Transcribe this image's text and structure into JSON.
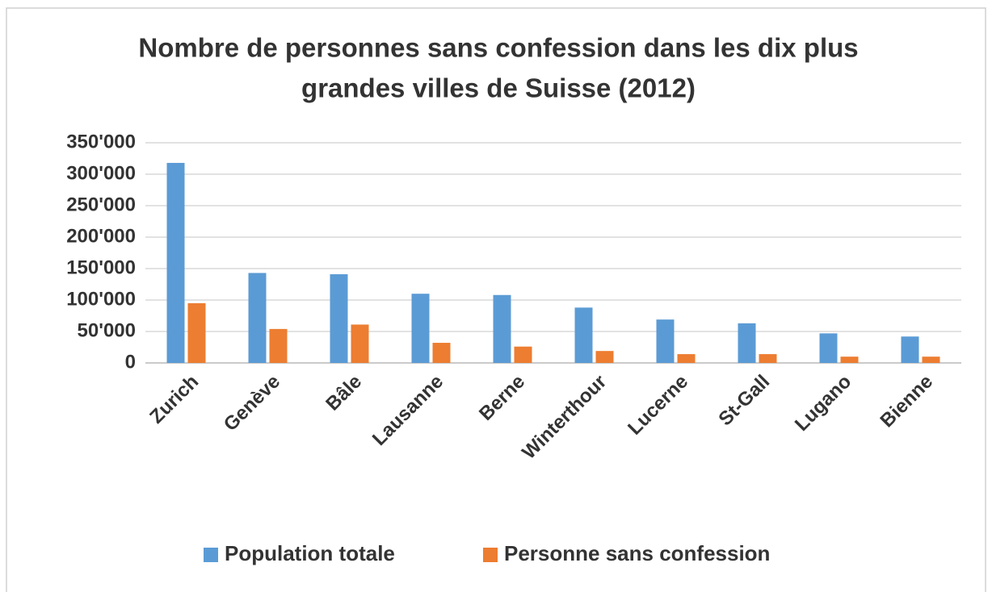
{
  "chart_data": {
    "type": "bar",
    "title": [
      "Nombre de personnes sans confession dans les dix plus",
      "grandes villes de Suisse (2012)"
    ],
    "categories": [
      "Zurich",
      "Genève",
      "Bâle",
      "Lausanne",
      "Berne",
      "Winterthour",
      "Lucerne",
      "St-Gall",
      "Lugano",
      "Bienne"
    ],
    "series": [
      {
        "name": "Population totale",
        "color": "#5b9bd5",
        "values": [
          318000,
          143000,
          141000,
          110000,
          108000,
          88000,
          69000,
          63000,
          47000,
          42000
        ]
      },
      {
        "name": "Personne sans confession",
        "color": "#ed7d31",
        "values": [
          95000,
          54000,
          61000,
          32000,
          26000,
          19000,
          14000,
          14000,
          10000,
          10000
        ]
      }
    ],
    "ylim": [
      0,
      350000
    ],
    "yticks": [
      0,
      {
        "value": 50000,
        "label": "50'000"
      },
      {
        "value": 100000,
        "label": "100'000"
      },
      {
        "value": 150000,
        "label": "150'000"
      },
      {
        "value": 200000,
        "label": "200'000"
      },
      {
        "value": 250000,
        "label": "250'000"
      },
      {
        "value": 300000,
        "label": "300'000"
      },
      {
        "value": 350000,
        "label": "350'000"
      }
    ],
    "grid": true,
    "legend": "bottom"
  }
}
